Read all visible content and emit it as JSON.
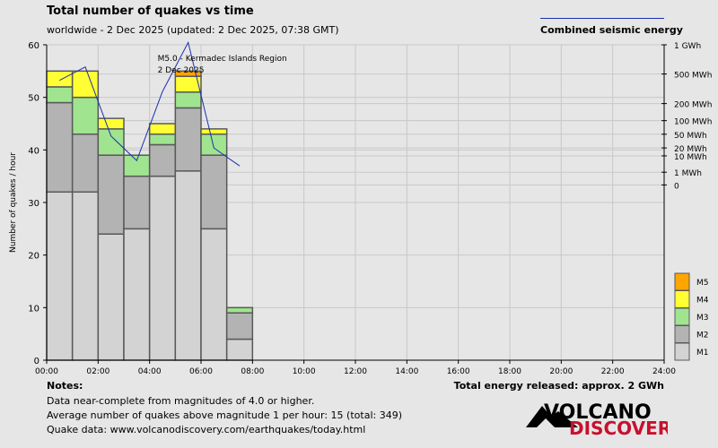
{
  "title": "Total number of quakes vs time",
  "subtitle": "worldwide -  2 Dec 2025 (updated: 2 Dec 2025, 07:38 GMT)",
  "legend_line_label": "Combined seismic energy",
  "notes": {
    "heading": "Notes:",
    "lines": [
      "Data near-complete from magnitudes of 4.0 or higher.",
      "Average number of quakes above magnitude 1 per hour: 15 (total: 349)",
      "Quake data: www.volcanodiscovery.com/earthquakes/today.html"
    ]
  },
  "energy_total": "Total energy released: approx. 2 GWh",
  "logo": {
    "word1": "VOLCANO",
    "word2": "DISCOVERY"
  },
  "colors": {
    "M1": "#d3d3d3",
    "M2": "#b3b3b3",
    "M3": "#a0e490",
    "M4": "#ffff33",
    "M5": "#ffa500",
    "energy_line": "#1a2fb0",
    "background": "#e6e6e6",
    "plot_background": "#e6e6e6",
    "grid": "#c8c8c8",
    "bar_outline": "#595959",
    "logo_red": "#c8102e"
  },
  "chart_data": {
    "type": "bar",
    "stacked": true,
    "ylabel": "Number of quakes / hour",
    "ylim": [
      0,
      60
    ],
    "yticks": [
      0,
      10,
      20,
      30,
      40,
      50,
      60
    ],
    "xlim_hours": [
      0,
      24
    ],
    "xticks": [
      "00:00",
      "02:00",
      "04:00",
      "06:00",
      "08:00",
      "10:00",
      "12:00",
      "14:00",
      "16:00",
      "18:00",
      "20:00",
      "22:00",
      "24:00"
    ],
    "categories": [
      "00:00",
      "01:00",
      "02:00",
      "03:00",
      "04:00",
      "05:00",
      "06:00",
      "07:00"
    ],
    "series": [
      {
        "name": "M1",
        "values": [
          32,
          32,
          24,
          25,
          35,
          36,
          25,
          4
        ]
      },
      {
        "name": "M2",
        "values": [
          17,
          11,
          15,
          10,
          6,
          12,
          14,
          5
        ]
      },
      {
        "name": "M3",
        "values": [
          3,
          7,
          5,
          4,
          2,
          3,
          4,
          1
        ]
      },
      {
        "name": "M4",
        "values": [
          3,
          5,
          2,
          0,
          2,
          3,
          1,
          0
        ]
      },
      {
        "name": "M5",
        "values": [
          0,
          0,
          0,
          0,
          0,
          1,
          0,
          0
        ]
      }
    ],
    "legend_order": [
      "M5",
      "M4",
      "M3",
      "M2",
      "M1"
    ],
    "energy_axis": {
      "labels": [
        "1 GWh",
        "500 MWh",
        "200 MWh",
        "100 MWh",
        "50 MWh",
        "20 MWh",
        "10 MWh",
        "1 MWh",
        "0"
      ],
      "values_mwh": [
        1000,
        500,
        200,
        100,
        50,
        20,
        10,
        1,
        0.001
      ]
    },
    "energy_series": {
      "x_hours": [
        0.5,
        1.5,
        2.5,
        3.5,
        4.5,
        5.5,
        6.5,
        7.5
      ],
      "values_mwh": [
        420,
        600,
        45,
        6,
        300,
        1050,
        20,
        3
      ]
    },
    "annotation": {
      "text_line1": "M5.0 - Kermadec Islands Region",
      "text_line2": "2 Dec 2025",
      "x_hours": 5.5
    }
  }
}
